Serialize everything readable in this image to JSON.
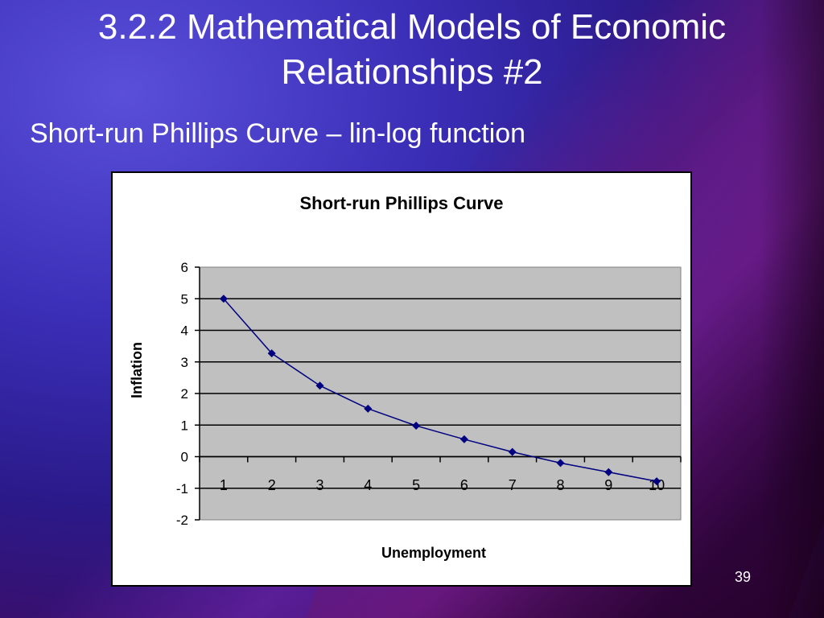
{
  "slide": {
    "title_line1": "3.2.2 Mathematical Models of Economic",
    "title_line2": "Relationships #2",
    "subtitle": "Short-run Phillips Curve – lin-log function",
    "page_number": "39"
  },
  "chart_data": {
    "type": "line",
    "title": "Short-run Phillips Curve",
    "xlabel": "Unemployment",
    "ylabel": "Inflation",
    "ylim": [
      -2,
      6
    ],
    "y_ticks": [
      "6",
      "5",
      "4",
      "3",
      "2",
      "1",
      "0",
      "-1",
      "-2"
    ],
    "categories": [
      "1",
      "2",
      "3",
      "4",
      "5",
      "6",
      "7",
      "8",
      "9",
      "10"
    ],
    "series": [
      {
        "values": [
          5.0,
          3.27,
          2.25,
          1.52,
          0.98,
          0.55,
          0.15,
          -0.2,
          -0.49,
          -0.78
        ],
        "color": "#000080"
      }
    ],
    "plot_background": "#c0c0c0",
    "grid": true,
    "legend": "none"
  }
}
